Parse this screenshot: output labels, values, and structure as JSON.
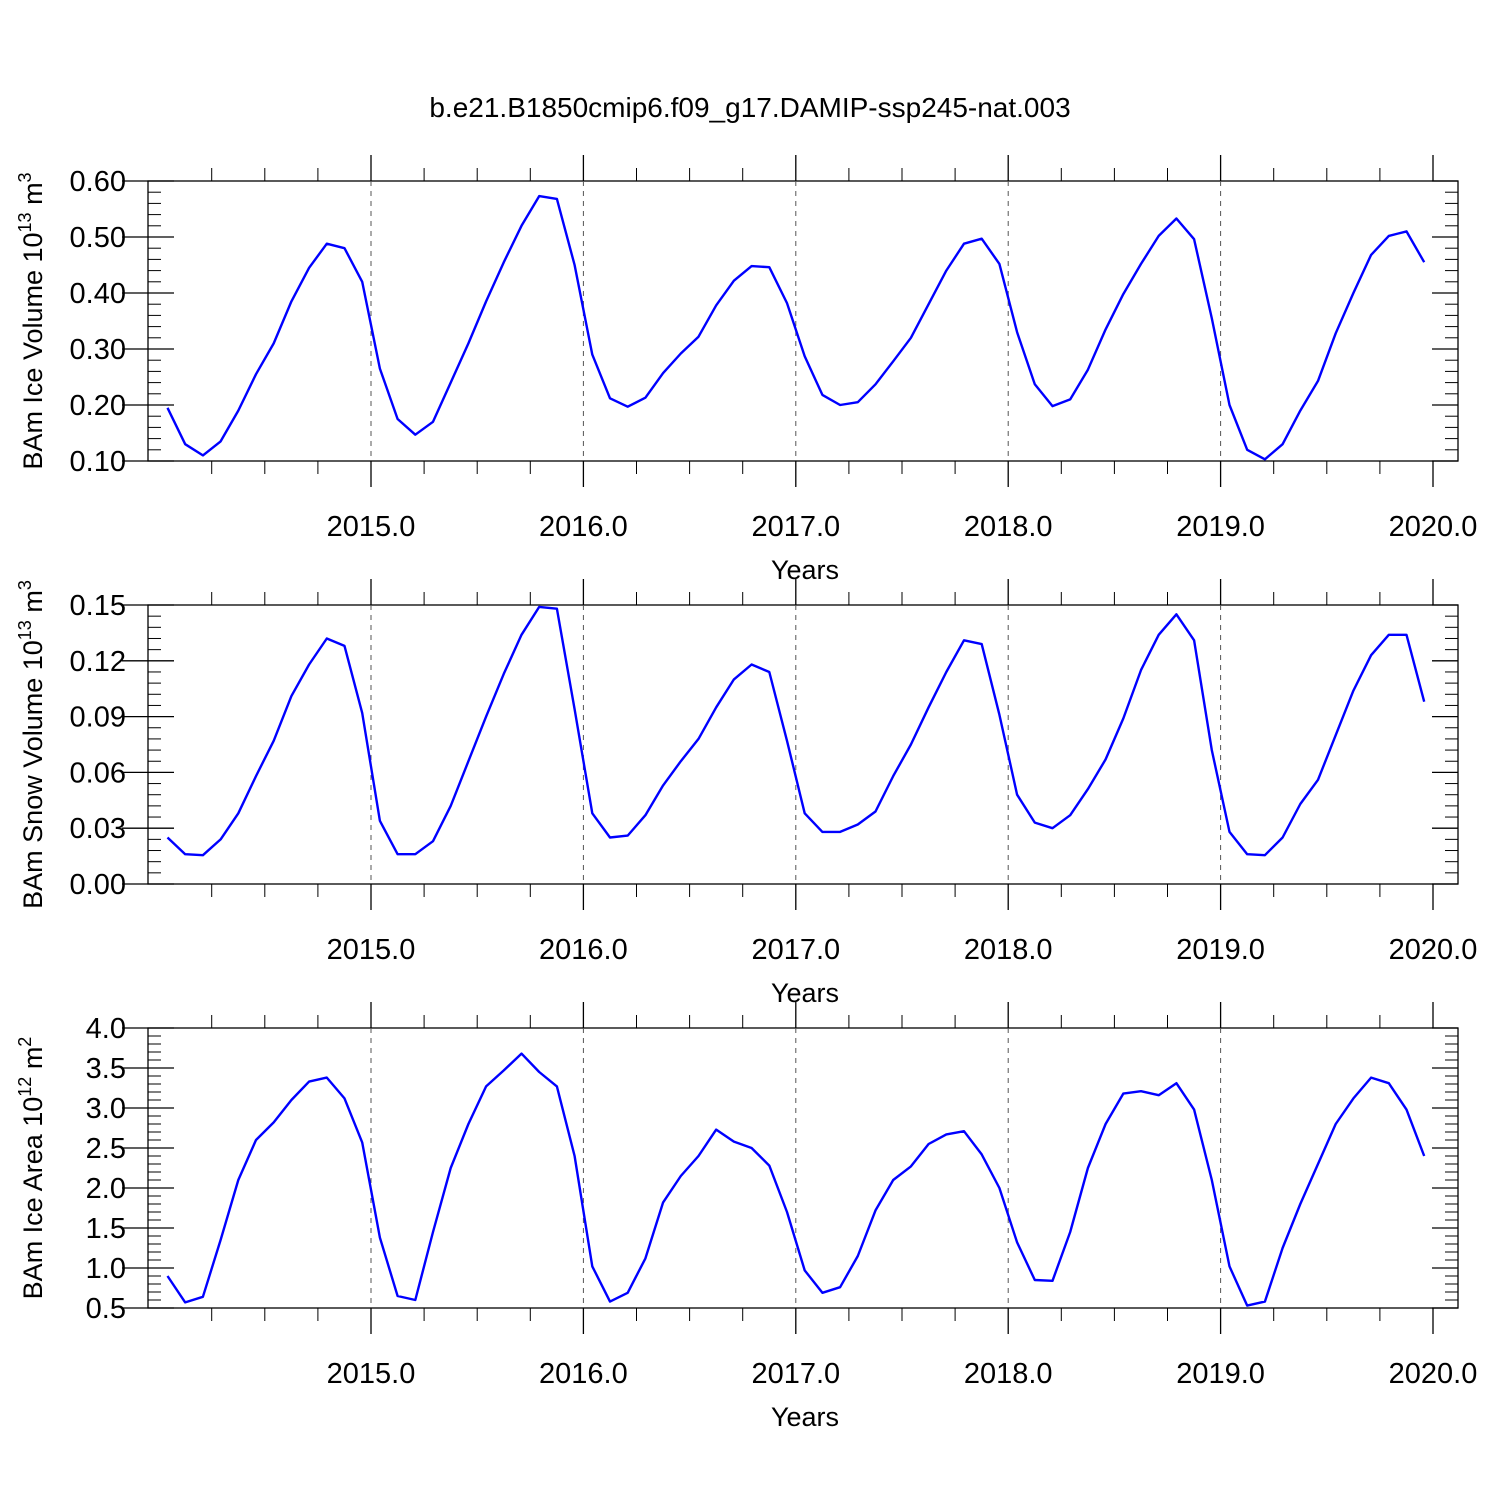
{
  "figure_title": "b.e21.B1850cmip6.f09_g17.DAMIP-ssp245-nat.003",
  "chart_data": [
    {
      "type": "line",
      "title": "b.e21.B1850cmip6.f09_g17.DAMIP-ssp245-nat.003",
      "xlabel": "Years",
      "ylabel": {
        "text": "BAm Ice Volume 10",
        "exp": "13",
        "unit": " m",
        "unit_exp": "3"
      },
      "xlim": [
        2014.042,
        2020.0
      ],
      "ylim": [
        0.1,
        0.6
      ],
      "yticks": [
        "0.10",
        "0.20",
        "0.30",
        "0.40",
        "0.50",
        "0.60"
      ],
      "xticks": [
        "2015.0",
        "2016.0",
        "2017.0",
        "2018.0",
        "2019.0",
        "2020.0"
      ],
      "grid": "vertical dashed at year boundaries",
      "color": "#0000ff",
      "x_start": 2014.042,
      "x_step": 0.08333,
      "values": [
        0.195,
        0.13,
        0.11,
        0.135,
        0.19,
        0.255,
        0.31,
        0.385,
        0.445,
        0.488,
        0.48,
        0.42,
        0.265,
        0.175,
        0.147,
        0.17,
        0.24,
        0.31,
        0.385,
        0.455,
        0.52,
        0.573,
        0.568,
        0.45,
        0.29,
        0.212,
        0.197,
        0.213,
        0.257,
        0.292,
        0.322,
        0.378,
        0.422,
        0.448,
        0.446,
        0.382,
        0.287,
        0.218,
        0.2,
        0.205,
        0.237,
        0.278,
        0.32,
        0.38,
        0.44,
        0.488,
        0.497,
        0.452,
        0.33,
        0.237,
        0.198,
        0.21,
        0.263,
        0.335,
        0.398,
        0.452,
        0.502,
        0.533,
        0.496,
        0.355,
        0.2,
        0.12,
        0.103,
        0.13,
        0.19,
        0.243,
        0.328,
        0.4,
        0.468,
        0.502,
        0.51,
        0.455
      ]
    },
    {
      "type": "line",
      "xlabel": "Years",
      "ylabel": {
        "text": "BAm Snow Volume 10",
        "exp": "13",
        "unit": " m",
        "unit_exp": "3"
      },
      "xlim": [
        2014.042,
        2020.0
      ],
      "ylim": [
        0.0,
        0.15
      ],
      "yticks": [
        "0.00",
        "0.03",
        "0.06",
        "0.09",
        "0.12",
        "0.15"
      ],
      "xticks": [
        "2015.0",
        "2016.0",
        "2017.0",
        "2018.0",
        "2019.0",
        "2020.0"
      ],
      "grid": "vertical dashed at year boundaries",
      "color": "#0000ff",
      "x_start": 2014.042,
      "x_step": 0.08333,
      "values": [
        0.025,
        0.016,
        0.0155,
        0.024,
        0.038,
        0.058,
        0.077,
        0.101,
        0.118,
        0.132,
        0.128,
        0.092,
        0.034,
        0.016,
        0.016,
        0.023,
        0.042,
        0.066,
        0.09,
        0.113,
        0.134,
        0.149,
        0.148,
        0.094,
        0.038,
        0.025,
        0.026,
        0.037,
        0.053,
        0.066,
        0.078,
        0.095,
        0.11,
        0.118,
        0.114,
        0.077,
        0.038,
        0.028,
        0.028,
        0.032,
        0.039,
        0.058,
        0.075,
        0.095,
        0.114,
        0.131,
        0.129,
        0.091,
        0.048,
        0.033,
        0.03,
        0.037,
        0.051,
        0.067,
        0.089,
        0.115,
        0.134,
        0.145,
        0.131,
        0.072,
        0.028,
        0.016,
        0.0155,
        0.025,
        0.043,
        0.056,
        0.08,
        0.104,
        0.123,
        0.134,
        0.134,
        0.098
      ]
    },
    {
      "type": "line",
      "xlabel": "Years",
      "ylabel": {
        "text": "BAm Ice Area 10",
        "exp": "12",
        "unit": " m",
        "unit_exp": "2"
      },
      "xlim": [
        2014.042,
        2020.0
      ],
      "ylim": [
        0.5,
        4.0
      ],
      "yticks": [
        "0.5",
        "1.0",
        "1.5",
        "2.0",
        "2.5",
        "3.0",
        "3.5",
        "4.0"
      ],
      "xticks": [
        "2015.0",
        "2016.0",
        "2017.0",
        "2018.0",
        "2019.0",
        "2020.0"
      ],
      "grid": "vertical dashed at year boundaries",
      "color": "#0000ff",
      "x_start": 2014.042,
      "x_step": 0.08333,
      "values": [
        0.9,
        0.57,
        0.64,
        1.35,
        2.1,
        2.6,
        2.82,
        3.1,
        3.33,
        3.38,
        3.12,
        2.57,
        1.38,
        0.65,
        0.6,
        1.45,
        2.25,
        2.8,
        3.27,
        3.47,
        3.68,
        3.45,
        3.27,
        2.4,
        1.02,
        0.58,
        0.69,
        1.12,
        1.82,
        2.15,
        2.4,
        2.73,
        2.58,
        2.5,
        2.28,
        1.7,
        0.97,
        0.69,
        0.76,
        1.15,
        1.72,
        2.1,
        2.27,
        2.55,
        2.67,
        2.71,
        2.42,
        2.0,
        1.32,
        0.85,
        0.84,
        1.45,
        2.25,
        2.8,
        3.18,
        3.21,
        3.16,
        3.31,
        2.98,
        2.1,
        1.02,
        0.53,
        0.58,
        1.25,
        1.8,
        2.3,
        2.8,
        3.12,
        3.38,
        3.31,
        2.98,
        2.4
      ]
    }
  ]
}
